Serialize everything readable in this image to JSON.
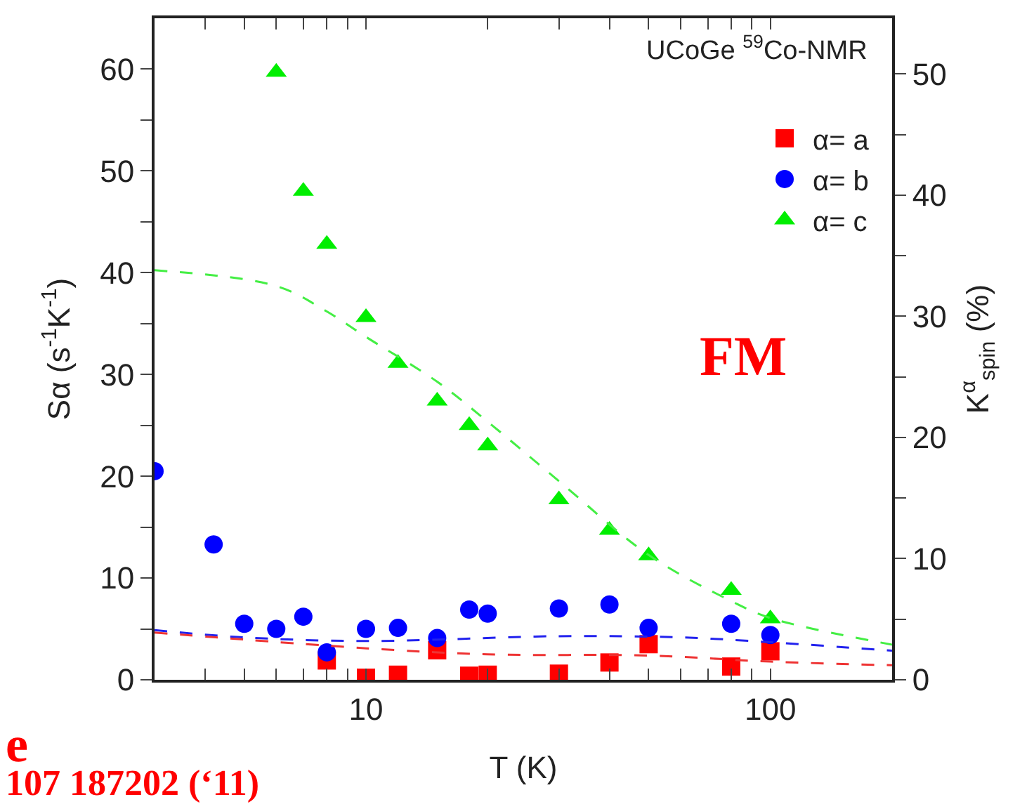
{
  "chart_data": {
    "type": "scatter",
    "xlabel": "T (K)",
    "ylabel": "Sα (s$^{-1}$K$^{-1}$)",
    "y2label": "K$^{α}$$_{spin}$ (%)",
    "log": "x",
    "legend": "top right",
    "xlim": [
      3,
      200
    ],
    "xticks": [
      {
        "value": 3,
        "label": null
      },
      {
        "value": 4,
        "label": null
      },
      {
        "value": 5,
        "label": null
      },
      {
        "value": 6,
        "label": null
      },
      {
        "value": 7,
        "label": null
      },
      {
        "value": 8,
        "label": null
      },
      {
        "value": 9,
        "label": null
      },
      10,
      {
        "value": 20,
        "label": null
      },
      {
        "value": 30,
        "label": null
      },
      {
        "value": 40,
        "label": null
      },
      {
        "value": 50,
        "label": null
      },
      {
        "value": 60,
        "label": null
      },
      {
        "value": 70,
        "label": null
      },
      {
        "value": 80,
        "label": null
      },
      {
        "value": 90,
        "label": null
      },
      100,
      {
        "value": 200,
        "label": null
      }
    ],
    "ylim": [
      0,
      65
    ],
    "yticks": [
      0,
      {
        "value": 5,
        "label": null
      },
      10,
      {
        "value": 15,
        "label": null
      },
      20,
      {
        "value": 25,
        "label": null
      },
      30,
      {
        "value": 35,
        "label": null
      },
      40,
      {
        "value": 45,
        "label": null
      },
      50,
      {
        "value": 55,
        "label": null
      },
      60
    ],
    "y2lim": [
      0,
      54.6
    ],
    "y2ticks": [
      0,
      {
        "value": 5,
        "label": null
      },
      10,
      {
        "value": 15,
        "label": null
      },
      20,
      {
        "value": 25,
        "label": null
      },
      30,
      {
        "value": 35,
        "label": null
      },
      40,
      {
        "value": 45,
        "label": null
      },
      50
    ],
    "series": [
      {
        "name": "α= a",
        "color": "#ff0000",
        "marker": "square",
        "x": [
          8,
          10,
          12,
          15,
          18,
          20,
          30,
          40,
          50,
          80,
          100
        ],
        "values": [
          1.9,
          0.2,
          0.5,
          2.9,
          0.4,
          0.5,
          0.6,
          1.7,
          3.5,
          1.3,
          2.8
        ]
      },
      {
        "name": "α= b",
        "color": "#0000ff",
        "marker": "circle",
        "x": [
          3,
          4.2,
          5,
          6,
          7,
          8,
          10,
          12,
          15,
          18,
          20,
          30,
          40,
          50,
          80,
          100
        ],
        "values": [
          20.5,
          13.3,
          5.5,
          5,
          6.2,
          2.7,
          5.0,
          5.1,
          4.1,
          6.9,
          6.5,
          7.0,
          7.4,
          5.1,
          5.5,
          4.4
        ]
      },
      {
        "name": "α= c",
        "color": "#00ee00",
        "marker": "triangle",
        "x": [
          6,
          7,
          8,
          10,
          12,
          15,
          18,
          20,
          30,
          40,
          50,
          80,
          100
        ],
        "values": [
          59.7,
          48,
          42.8,
          35.6,
          31.1,
          27.4,
          25,
          23,
          17.7,
          14.7,
          12.2,
          8.8,
          6.0
        ]
      },
      {
        "type": "line",
        "axis": "y2",
        "color": "#44ee44",
        "line_style": "dashed",
        "marker": "none",
        "x": [
          3,
          6,
          8,
          10,
          15,
          20,
          30,
          50,
          80,
          100,
          200
        ],
        "values": [
          33.8,
          32.5,
          30.4,
          28.3,
          24.6,
          21.3,
          16.4,
          10.3,
          6.5,
          5.1,
          2.9
        ]
      },
      {
        "type": "line",
        "axis": "y2",
        "color": "#2222ee",
        "line_style": "dashed",
        "marker": "none",
        "x": [
          3,
          5,
          10,
          30,
          60,
          100,
          200
        ],
        "values": [
          4.1,
          3.5,
          3.2,
          3.6,
          3.5,
          3.1,
          2.4
        ]
      },
      {
        "type": "line",
        "axis": "y2",
        "color": "#ee3333",
        "line_style": "dashed",
        "marker": "none",
        "x": [
          3,
          10,
          20,
          50,
          100,
          200
        ],
        "values": [
          3.9,
          2.6,
          2.1,
          2.0,
          1.5,
          1.2
        ]
      }
    ],
    "annotations": [
      "UCoGe $^{59}$Co-NMR",
      "FM",
      "e",
      "107 187202 (‘11)"
    ]
  }
}
